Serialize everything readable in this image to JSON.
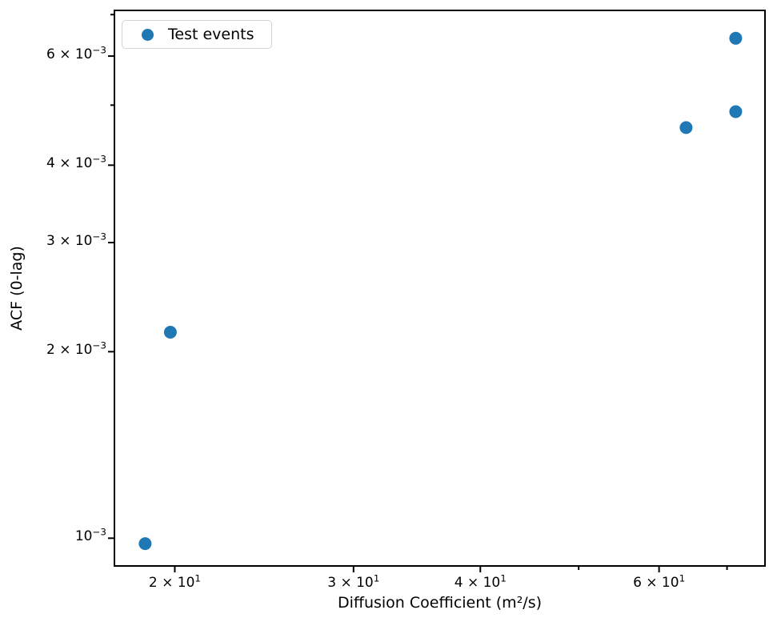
{
  "chart_data": {
    "type": "scatter",
    "title": "",
    "xlabel": "Diffusion Coefficient (m²/s)",
    "ylabel": "ACF (0-lag)",
    "xscale": "log",
    "yscale": "log",
    "xlim": [
      17.44,
      76.3
    ],
    "ylim": [
      0.000902,
      0.00711
    ],
    "grid": false,
    "legend": {
      "label": "Test events",
      "position": "upper left"
    },
    "series": [
      {
        "name": "Test events",
        "color": "#1f77b4",
        "points": [
          [
            18.7,
            0.00098
          ],
          [
            19.8,
            0.00215
          ],
          [
            63.8,
            0.0046
          ],
          [
            71.4,
            0.00488
          ],
          [
            71.4,
            0.00641
          ]
        ]
      }
    ],
    "xticks": [
      {
        "value": 20,
        "base": "2 × 10",
        "exp": "1"
      },
      {
        "value": 30,
        "base": "3 × 10",
        "exp": "1"
      },
      {
        "value": 40,
        "base": "4 × 10",
        "exp": "1"
      },
      {
        "value": 60,
        "base": "6 × 10",
        "exp": "1"
      }
    ],
    "xticks_minor": [
      50,
      70
    ],
    "yticks": [
      {
        "value": 0.001,
        "base": "10",
        "exp": "−3"
      },
      {
        "value": 0.002,
        "base": "2 × 10",
        "exp": "−3"
      },
      {
        "value": 0.003,
        "base": "3 × 10",
        "exp": "−3"
      },
      {
        "value": 0.004,
        "base": "4 × 10",
        "exp": "−3"
      },
      {
        "value": 0.006,
        "base": "6 × 10",
        "exp": "−3"
      }
    ],
    "yticks_minor": [
      0.005,
      0.007
    ],
    "colors": {
      "marker": "#1f77b4",
      "spine": "#000000",
      "background": "#ffffff"
    }
  }
}
